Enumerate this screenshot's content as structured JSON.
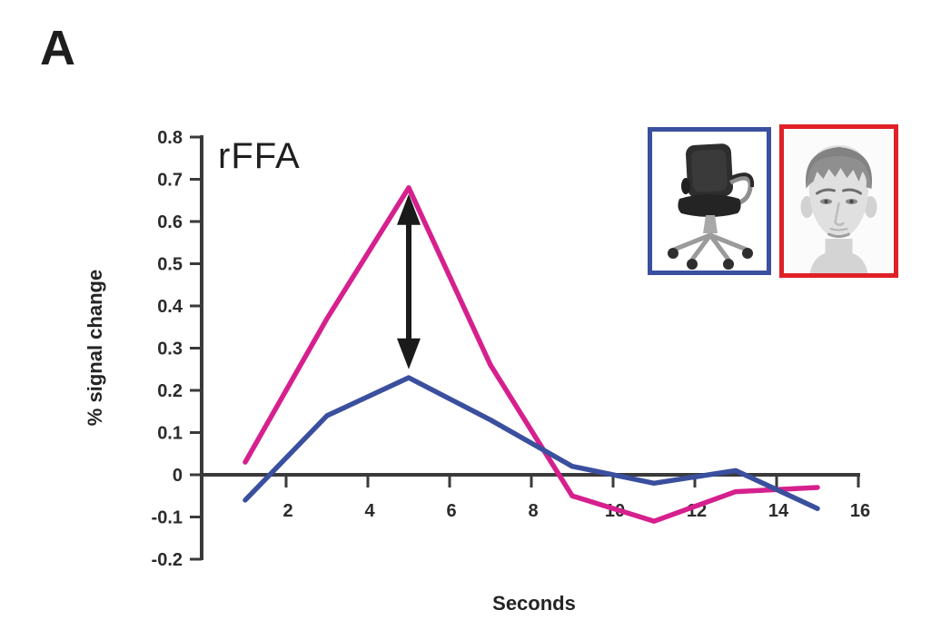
{
  "panel_label": "A",
  "region_label": "rFFA",
  "axes": {
    "xlabel": "Seconds",
    "ylabel": "% signal change",
    "y_ticks": [
      "0.8",
      "0.7",
      "0.6",
      "0.5",
      "0.4",
      "0.3",
      "0.2",
      "0.1",
      "0",
      "-0.1",
      "-0.2"
    ],
    "x_ticks": [
      "2",
      "4",
      "6",
      "8",
      "10",
      "12",
      "14",
      "16"
    ]
  },
  "chart_data": {
    "type": "line",
    "title": "rFFA",
    "xlabel": "Seconds",
    "ylabel": "% signal change",
    "xlim": [
      0,
      16
    ],
    "ylim": [
      -0.2,
      0.8
    ],
    "grid": false,
    "x": [
      1,
      3,
      5,
      7,
      9,
      11,
      13,
      15
    ],
    "series": [
      {
        "name": "faces",
        "color": "#D6208E",
        "values": [
          0.03,
          0.37,
          0.68,
          0.26,
          -0.05,
          -0.11,
          -0.04,
          -0.03
        ]
      },
      {
        "name": "chairs",
        "color": "#3A4F9E",
        "values": [
          -0.06,
          0.14,
          0.23,
          0.13,
          0.02,
          -0.02,
          0.01,
          -0.08
        ]
      }
    ],
    "annotations": [
      {
        "type": "double-headed-arrow",
        "x": 5,
        "from": 0.25,
        "to": 0.665,
        "color": "#1a1a1a",
        "meaning": "peak difference between faces and chairs at 5 s"
      }
    ],
    "legend": [
      {
        "item": "chair-image",
        "frame_color": "#3A4F9E",
        "series": "chairs"
      },
      {
        "item": "face-image",
        "frame_color": "#DF2127",
        "series": "faces"
      }
    ]
  },
  "colors": {
    "axis": "#3a3a3a",
    "background": "#ffffff",
    "faces_line": "#D6208E",
    "chairs_line": "#3A4F9E",
    "arrow": "#1a1a1a",
    "face_frame": "#DF2127",
    "chair_frame": "#3A4F9E"
  }
}
